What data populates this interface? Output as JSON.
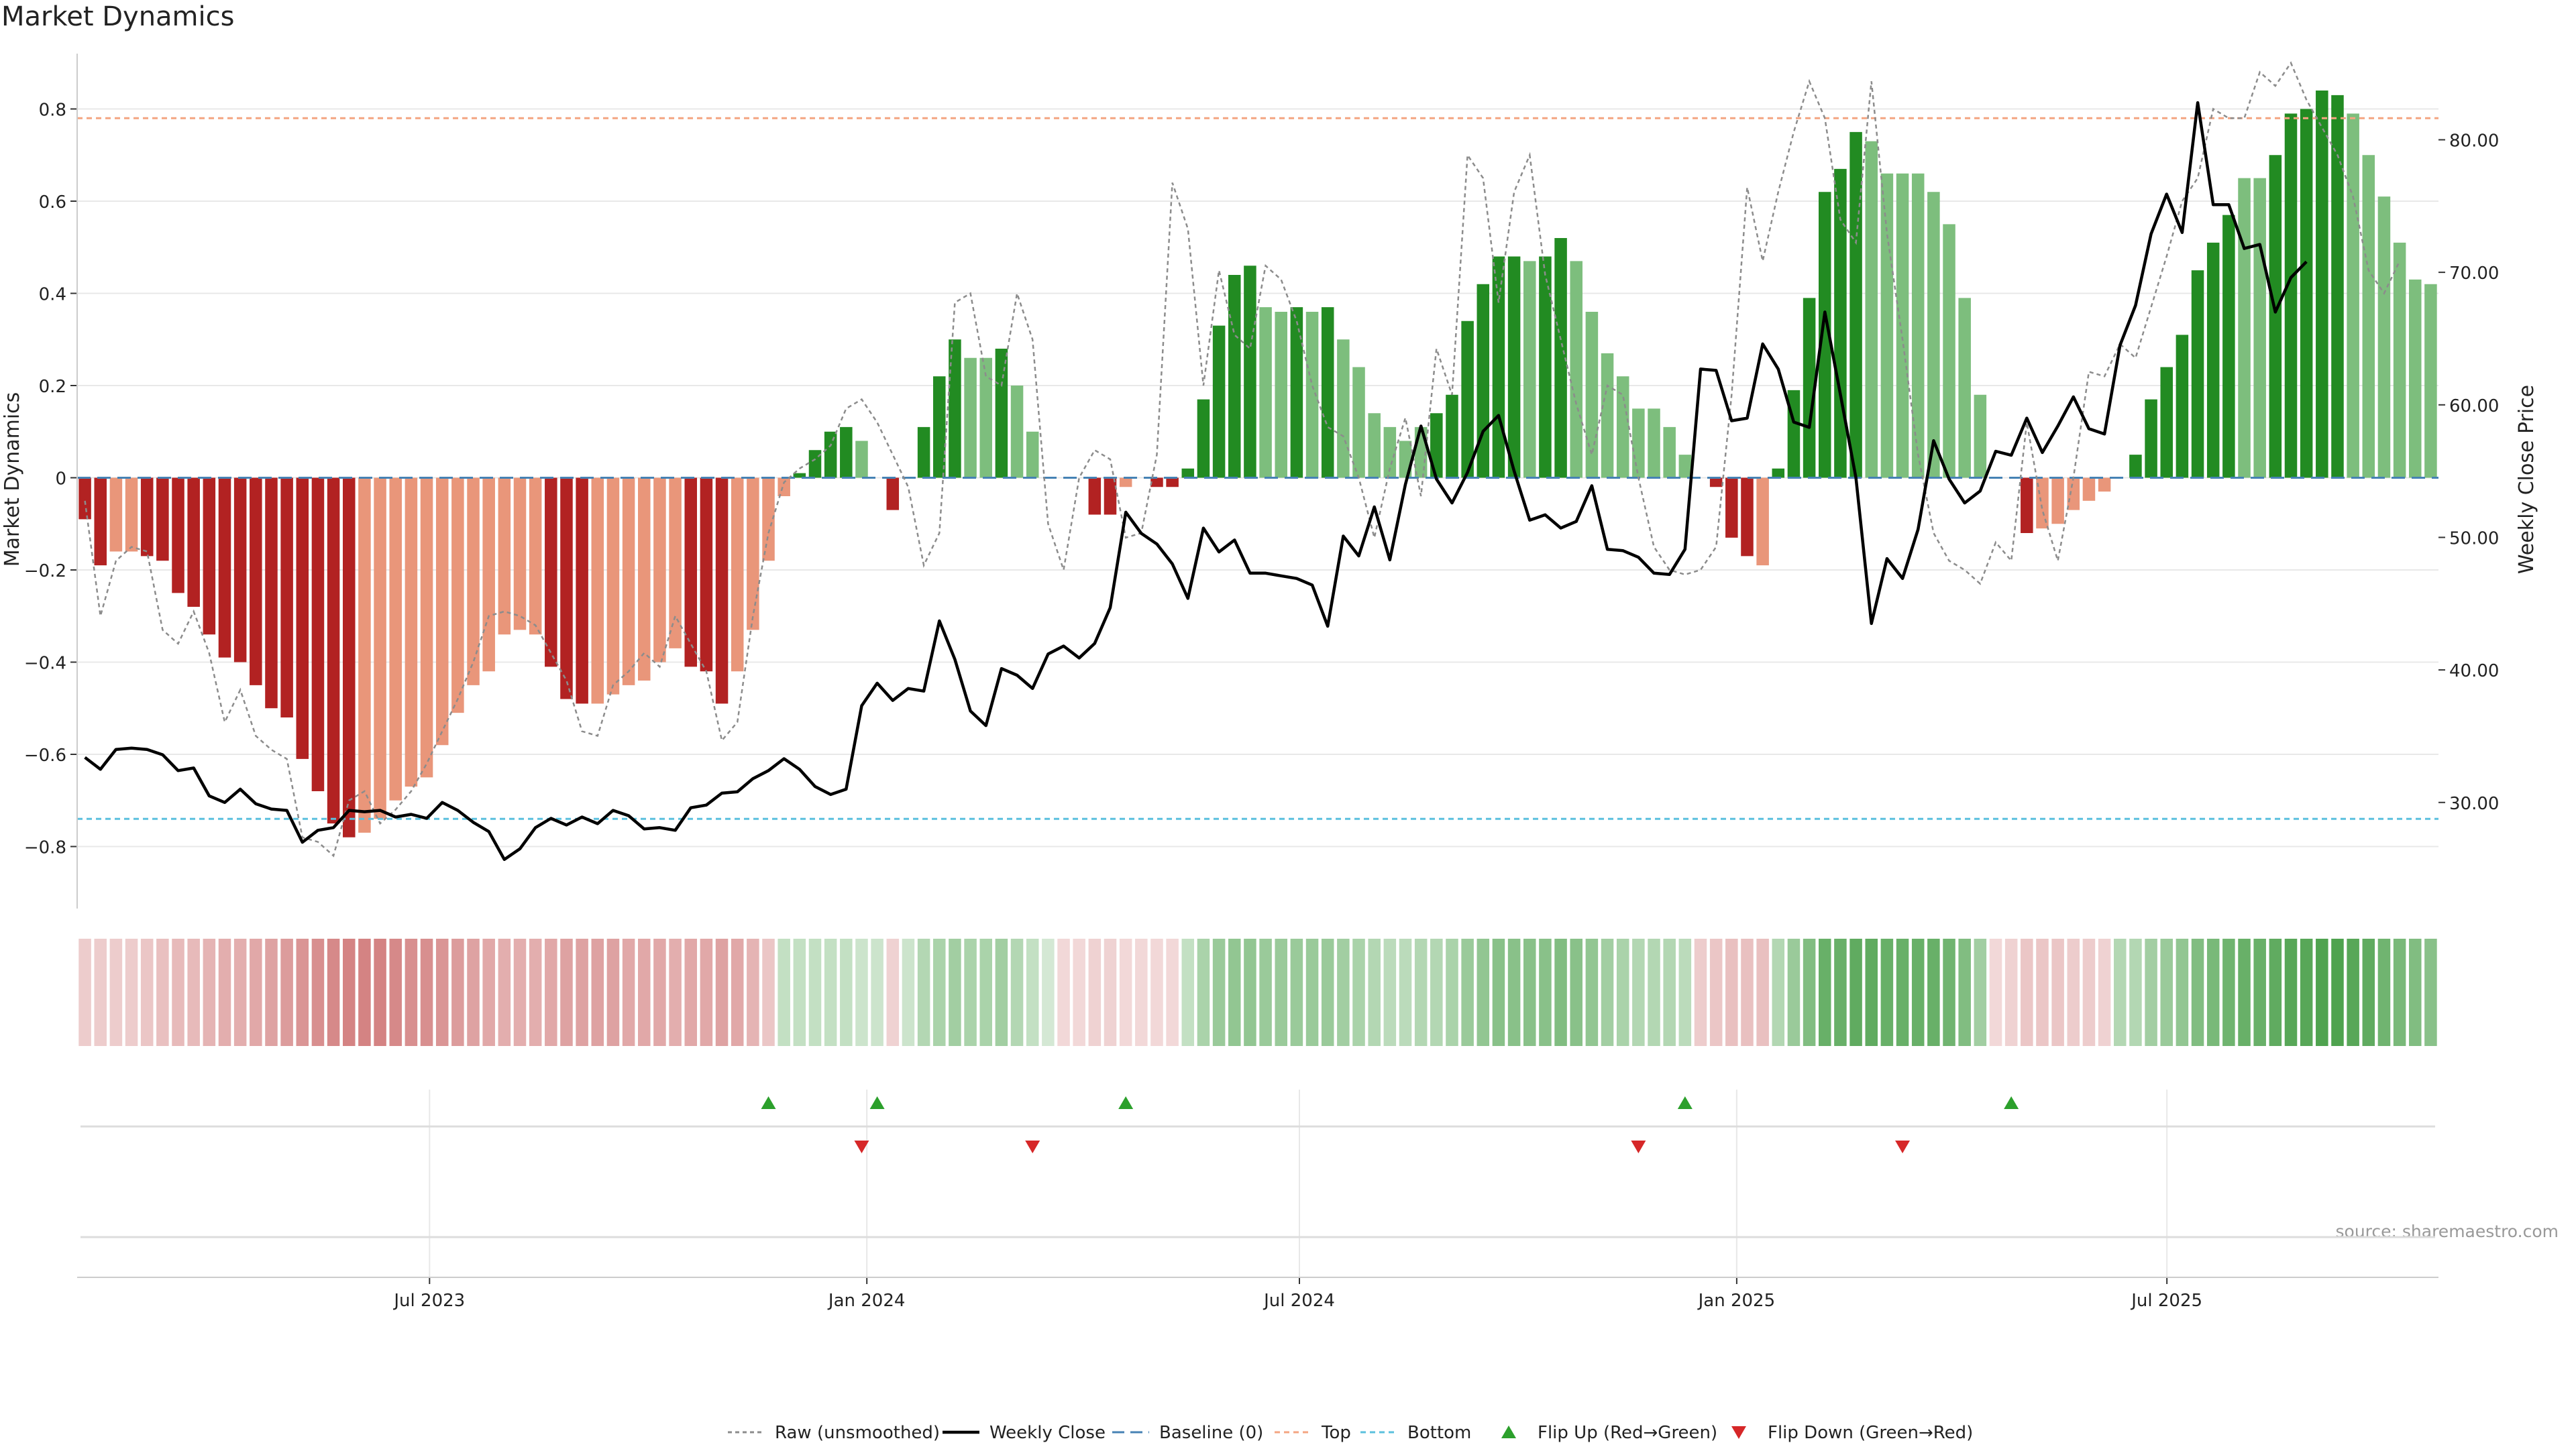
{
  "chart_data": {
    "type": "bar",
    "title": "Market Dynamics",
    "source_note": "source: sharemaestro.com",
    "ylabel": "Market Dynamics",
    "y2label": "Weekly Close Price",
    "ylim": [
      -0.92,
      0.92
    ],
    "y2lim": [
      22.5,
      86.5
    ],
    "yticks": [
      0.8,
      0.6,
      0.4,
      0.2,
      0,
      -0.2,
      -0.4,
      -0.6,
      -0.8
    ],
    "ytick_labels": [
      "0.8",
      "0.6",
      "0.4",
      "0.2",
      "0",
      "−0.2",
      "−0.4",
      "−0.6",
      "−0.8"
    ],
    "y2ticks": [
      80,
      70,
      60,
      50,
      40,
      30
    ],
    "y2tick_labels": [
      "80.00",
      "70.00",
      "60.00",
      "50.00",
      "40.00",
      "30.00"
    ],
    "x_start": "2023-02-06",
    "x_end": "2025-10-20",
    "xticks": [
      "2023-07-01",
      "2024-01-01",
      "2024-07-01",
      "2025-01-01",
      "2025-07-01"
    ],
    "xtick_labels": [
      "Jul 2023",
      "Jan 2024",
      "Jul 2024",
      "Jan 2025",
      "Jul 2025"
    ],
    "top_line": 0.78,
    "bottom_line": -0.74,
    "baseline": 0,
    "grid": true,
    "legend_position": "bottom-center",
    "colors": {
      "red_strong": "#b22222",
      "red_weak": "#e9967a",
      "green_strong": "#228b22",
      "green_weak": "#7dbe7d",
      "raw_line": "#8c8c8c",
      "close_line": "#000000",
      "baseline": "#4682b4",
      "top_line": "#f4a582",
      "bottom_line": "#5bc0de",
      "flip_up": "#2ca02c",
      "flip_down": "#d62728",
      "grid": "#e8e8e8"
    },
    "legend": [
      {
        "label": "Raw (unsmoothed)",
        "kind": "raw"
      },
      {
        "label": "Weekly Close",
        "kind": "close"
      },
      {
        "label": "Baseline (0)",
        "kind": "baseline"
      },
      {
        "label": "Top",
        "kind": "top"
      },
      {
        "label": "Bottom",
        "kind": "bottom"
      },
      {
        "label": "Flip Up (Red→Green)",
        "kind": "flip_up"
      },
      {
        "label": "Flip Down (Green→Red)",
        "kind": "flip_down"
      }
    ],
    "series": [
      {
        "name": "Market Dynamics",
        "values": [
          -0.09,
          -0.19,
          -0.16,
          -0.16,
          -0.17,
          -0.18,
          -0.25,
          -0.28,
          -0.34,
          -0.39,
          -0.4,
          -0.45,
          -0.5,
          -0.52,
          -0.61,
          -0.68,
          -0.75,
          -0.78,
          -0.77,
          -0.74,
          -0.7,
          -0.67,
          -0.65,
          -0.58,
          -0.51,
          -0.45,
          -0.42,
          -0.34,
          -0.33,
          -0.34,
          -0.41,
          -0.48,
          -0.49,
          -0.49,
          -0.47,
          -0.45,
          -0.44,
          -0.4,
          -0.37,
          -0.41,
          -0.42,
          -0.49,
          -0.42,
          -0.33,
          -0.18,
          -0.04,
          0.01,
          0.06,
          0.1,
          0.11,
          0.08,
          0.0,
          -0.07,
          0.0,
          0.11,
          0.22,
          0.3,
          0.26,
          0.26,
          0.28,
          0.2,
          0.1,
          0.0,
          0.0,
          0.0,
          -0.08,
          -0.08,
          -0.02,
          0.0,
          -0.02,
          -0.02,
          0.02,
          0.17,
          0.33,
          0.44,
          0.46,
          0.37,
          0.36,
          0.37,
          0.36,
          0.37,
          0.3,
          0.24,
          0.14,
          0.11,
          0.08,
          0.11,
          0.14,
          0.18,
          0.34,
          0.42,
          0.48,
          0.48,
          0.47,
          0.48,
          0.52,
          0.47,
          0.36,
          0.27,
          0.22,
          0.15,
          0.15,
          0.11,
          0.05,
          0.0,
          -0.02,
          -0.13,
          -0.17,
          -0.19,
          0.02,
          0.19,
          0.39,
          0.62,
          0.67,
          0.75,
          0.73,
          0.66,
          0.66,
          0.66,
          0.62,
          0.55,
          0.39,
          0.18,
          0.0,
          0.0,
          -0.12,
          -0.11,
          -0.1,
          -0.07,
          -0.05,
          -0.03,
          0.0,
          0.05,
          0.17,
          0.24,
          0.31,
          0.45,
          0.51,
          0.57,
          0.65,
          0.65,
          0.7,
          0.79,
          0.8,
          0.84,
          0.83,
          0.79,
          0.7,
          0.61,
          0.51,
          0.43,
          0.42
        ],
        "shade": [
          "strong",
          "strong",
          "weak",
          "weak",
          "strong",
          "strong",
          "strong",
          "strong",
          "strong",
          "strong",
          "strong",
          "strong",
          "strong",
          "strong",
          "strong",
          "strong",
          "strong",
          "strong",
          "weak",
          "weak",
          "weak",
          "weak",
          "weak",
          "weak",
          "weak",
          "weak",
          "weak",
          "weak",
          "weak",
          "weak",
          "strong",
          "strong",
          "strong",
          "weak",
          "weak",
          "weak",
          "weak",
          "weak",
          "weak",
          "strong",
          "strong",
          "strong",
          "weak",
          "weak",
          "weak",
          "weak",
          "strong",
          "strong",
          "strong",
          "strong",
          "weak",
          "weak",
          "strong",
          "weak",
          "strong",
          "strong",
          "strong",
          "weak",
          "weak",
          "strong",
          "weak",
          "weak",
          "weak",
          "weak",
          "weak",
          "strong",
          "strong",
          "weak",
          "weak",
          "strong",
          "strong",
          "strong",
          "strong",
          "strong",
          "strong",
          "strong",
          "weak",
          "weak",
          "strong",
          "weak",
          "strong",
          "weak",
          "weak",
          "weak",
          "weak",
          "weak",
          "weak",
          "strong",
          "strong",
          "strong",
          "strong",
          "strong",
          "strong",
          "weak",
          "strong",
          "strong",
          "weak",
          "weak",
          "weak",
          "weak",
          "weak",
          "weak",
          "weak",
          "weak",
          "weak",
          "strong",
          "strong",
          "strong",
          "weak",
          "strong",
          "strong",
          "strong",
          "strong",
          "strong",
          "strong",
          "weak",
          "weak",
          "weak",
          "weak",
          "weak",
          "weak",
          "weak",
          "weak",
          "weak",
          "weak",
          "strong",
          "weak",
          "weak",
          "weak",
          "weak",
          "weak",
          "weak",
          "strong",
          "strong",
          "strong",
          "strong",
          "strong",
          "strong",
          "strong",
          "weak",
          "weak",
          "strong",
          "strong",
          "strong",
          "strong",
          "strong",
          "weak",
          "weak",
          "weak",
          "weak",
          "weak",
          "weak",
          "weak",
          "weak"
        ]
      },
      {
        "name": "Raw (unsmoothed)",
        "values": [
          -0.05,
          -0.3,
          -0.18,
          -0.15,
          -0.16,
          -0.33,
          -0.36,
          -0.29,
          -0.38,
          -0.53,
          -0.46,
          -0.56,
          -0.59,
          -0.61,
          -0.78,
          -0.79,
          -0.82,
          -0.7,
          -0.68,
          -0.75,
          -0.72,
          -0.68,
          -0.62,
          -0.55,
          -0.48,
          -0.4,
          -0.3,
          -0.29,
          -0.3,
          -0.32,
          -0.38,
          -0.44,
          -0.55,
          -0.56,
          -0.45,
          -0.42,
          -0.38,
          -0.41,
          -0.3,
          -0.36,
          -0.42,
          -0.57,
          -0.53,
          -0.3,
          -0.12,
          -0.01,
          0.02,
          0.04,
          0.07,
          0.15,
          0.17,
          0.12,
          0.05,
          -0.02,
          -0.19,
          -0.12,
          0.38,
          0.4,
          0.22,
          0.2,
          0.4,
          0.3,
          -0.1,
          -0.2,
          0.0,
          0.06,
          0.04,
          -0.13,
          -0.12,
          0.05,
          0.64,
          0.54,
          0.2,
          0.45,
          0.31,
          0.28,
          0.46,
          0.43,
          0.34,
          0.2,
          0.11,
          0.09,
          0.0,
          -0.13,
          0.02,
          0.13,
          -0.04,
          0.28,
          0.18,
          0.7,
          0.65,
          0.38,
          0.62,
          0.7,
          0.44,
          0.3,
          0.16,
          0.05,
          0.2,
          0.18,
          0.0,
          -0.15,
          -0.2,
          -0.21,
          -0.2,
          -0.15,
          0.18,
          0.63,
          0.47,
          0.62,
          0.75,
          0.86,
          0.78,
          0.56,
          0.51,
          0.86,
          0.53,
          0.3,
          0.05,
          -0.12,
          -0.18,
          -0.2,
          -0.23,
          -0.14,
          -0.18,
          0.12,
          -0.07,
          -0.18,
          0.0,
          0.23,
          0.22,
          0.29,
          0.26,
          0.37,
          0.48,
          0.6,
          0.65,
          0.8,
          0.78,
          0.78,
          0.88,
          0.85,
          0.9,
          0.82,
          0.76,
          0.7,
          0.61,
          0.45,
          0.4,
          0.47
        ]
      },
      {
        "name": "Weekly Close",
        "values": [
          33.4,
          32.5,
          34.0,
          34.1,
          34.0,
          33.6,
          32.4,
          32.6,
          30.5,
          30.0,
          31.0,
          29.9,
          29.5,
          29.4,
          27.0,
          27.9,
          28.1,
          29.4,
          29.3,
          29.4,
          28.9,
          29.1,
          28.8,
          30.0,
          29.4,
          28.5,
          27.8,
          25.7,
          26.5,
          28.1,
          28.8,
          28.3,
          28.9,
          28.4,
          29.4,
          29.0,
          28.0,
          28.1,
          27.9,
          29.6,
          29.8,
          30.7,
          30.8,
          31.8,
          32.4,
          33.3,
          32.5,
          31.2,
          30.6,
          31.0,
          37.3,
          39.0,
          37.7,
          38.6,
          38.4,
          43.7,
          40.8,
          36.9,
          35.8,
          40.1,
          39.6,
          38.6,
          41.2,
          41.8,
          40.9,
          42.0,
          44.7,
          51.9,
          50.3,
          49.5,
          48.0,
          45.4,
          50.7,
          48.9,
          49.8,
          47.3,
          47.3,
          47.1,
          46.9,
          46.4,
          43.3,
          50.1,
          48.6,
          52.3,
          48.3,
          54.0,
          58.4,
          54.4,
          52.6,
          54.9,
          58.0,
          59.2,
          55.0,
          51.3,
          51.7,
          50.7,
          51.2,
          53.9,
          49.1,
          49.0,
          48.5,
          47.3,
          47.2,
          49.1,
          62.7,
          62.6,
          58.8,
          59.0,
          64.6,
          62.7,
          58.7,
          58.3,
          67.0,
          60.8,
          54.5,
          43.5,
          48.4,
          46.9,
          50.6,
          57.3,
          54.4,
          52.6,
          53.5,
          56.5,
          56.2,
          59.0,
          56.4,
          58.4,
          60.6,
          58.2,
          57.8,
          64.5,
          67.5,
          72.9,
          75.9,
          73.0,
          82.8,
          75.1,
          75.1,
          71.8,
          72.1,
          67.0,
          69.6,
          70.8
        ]
      }
    ],
    "heatmap": {
      "name": "strength-strip",
      "values": [
        -0.2,
        -0.2,
        -0.2,
        -0.2,
        -0.25,
        -0.3,
        -0.35,
        -0.35,
        -0.4,
        -0.45,
        -0.45,
        -0.5,
        -0.55,
        -0.6,
        -0.65,
        -0.7,
        -0.75,
        -0.8,
        -0.8,
        -0.8,
        -0.75,
        -0.7,
        -0.7,
        -0.65,
        -0.6,
        -0.55,
        -0.5,
        -0.45,
        -0.45,
        -0.45,
        -0.5,
        -0.55,
        -0.55,
        -0.55,
        -0.55,
        -0.5,
        -0.5,
        -0.5,
        -0.45,
        -0.5,
        -0.5,
        -0.55,
        -0.5,
        -0.4,
        -0.25,
        0.2,
        0.2,
        0.2,
        0.2,
        0.2,
        0.15,
        0.15,
        -0.15,
        0.15,
        0.3,
        0.35,
        0.4,
        0.35,
        0.35,
        0.4,
        0.3,
        0.2,
        0.1,
        -0.1,
        -0.1,
        -0.15,
        -0.15,
        -0.1,
        -0.1,
        -0.1,
        -0.1,
        0.2,
        0.35,
        0.45,
        0.5,
        0.5,
        0.45,
        0.45,
        0.45,
        0.45,
        0.45,
        0.4,
        0.35,
        0.3,
        0.25,
        0.25,
        0.3,
        0.3,
        0.35,
        0.45,
        0.5,
        0.55,
        0.55,
        0.55,
        0.55,
        0.6,
        0.55,
        0.5,
        0.4,
        0.35,
        0.3,
        0.3,
        0.3,
        0.25,
        -0.2,
        -0.25,
        -0.3,
        -0.3,
        -0.3,
        0.3,
        0.45,
        0.6,
        0.75,
        0.75,
        0.8,
        0.8,
        0.75,
        0.75,
        0.75,
        0.75,
        0.7,
        0.6,
        0.4,
        -0.1,
        -0.15,
        -0.25,
        -0.25,
        -0.25,
        -0.2,
        -0.2,
        -0.15,
        0.3,
        0.3,
        0.4,
        0.45,
        0.5,
        0.6,
        0.65,
        0.7,
        0.75,
        0.75,
        0.8,
        0.85,
        0.85,
        0.9,
        0.9,
        0.85,
        0.8,
        0.7,
        0.65,
        0.6,
        0.55
      ]
    },
    "flips_up": [
      44,
      51,
      67,
      103,
      124
    ],
    "flips_down": [
      50,
      61,
      100,
      117
    ]
  }
}
